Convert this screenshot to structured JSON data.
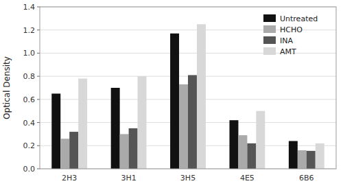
{
  "chart_data": {
    "type": "bar",
    "categories": [
      "2H3",
      "3H1",
      "3H5",
      "4E5",
      "6B6"
    ],
    "series": [
      {
        "name": "Untreated",
        "color": "#111111",
        "values": [
          0.65,
          0.7,
          1.17,
          0.42,
          0.24
        ]
      },
      {
        "name": "HCHO",
        "color": "#aaaaaa",
        "values": [
          0.26,
          0.3,
          0.73,
          0.29,
          0.16
        ]
      },
      {
        "name": "INA",
        "color": "#555555",
        "values": [
          0.32,
          0.35,
          0.81,
          0.22,
          0.155
        ]
      },
      {
        "name": "AMT",
        "color": "#d8d8d8",
        "values": [
          0.78,
          0.8,
          1.25,
          0.5,
          0.22
        ]
      }
    ],
    "ylabel": "Optical Density",
    "ylim": [
      0,
      1.4
    ],
    "yticks": [
      {
        "value": 0,
        "label": "0.0"
      },
      0.2,
      0.4,
      0.6,
      0.8,
      {
        "value": 1,
        "label": "1.0"
      },
      1.2,
      1.4
    ],
    "grid": true,
    "legend": "upper right"
  }
}
